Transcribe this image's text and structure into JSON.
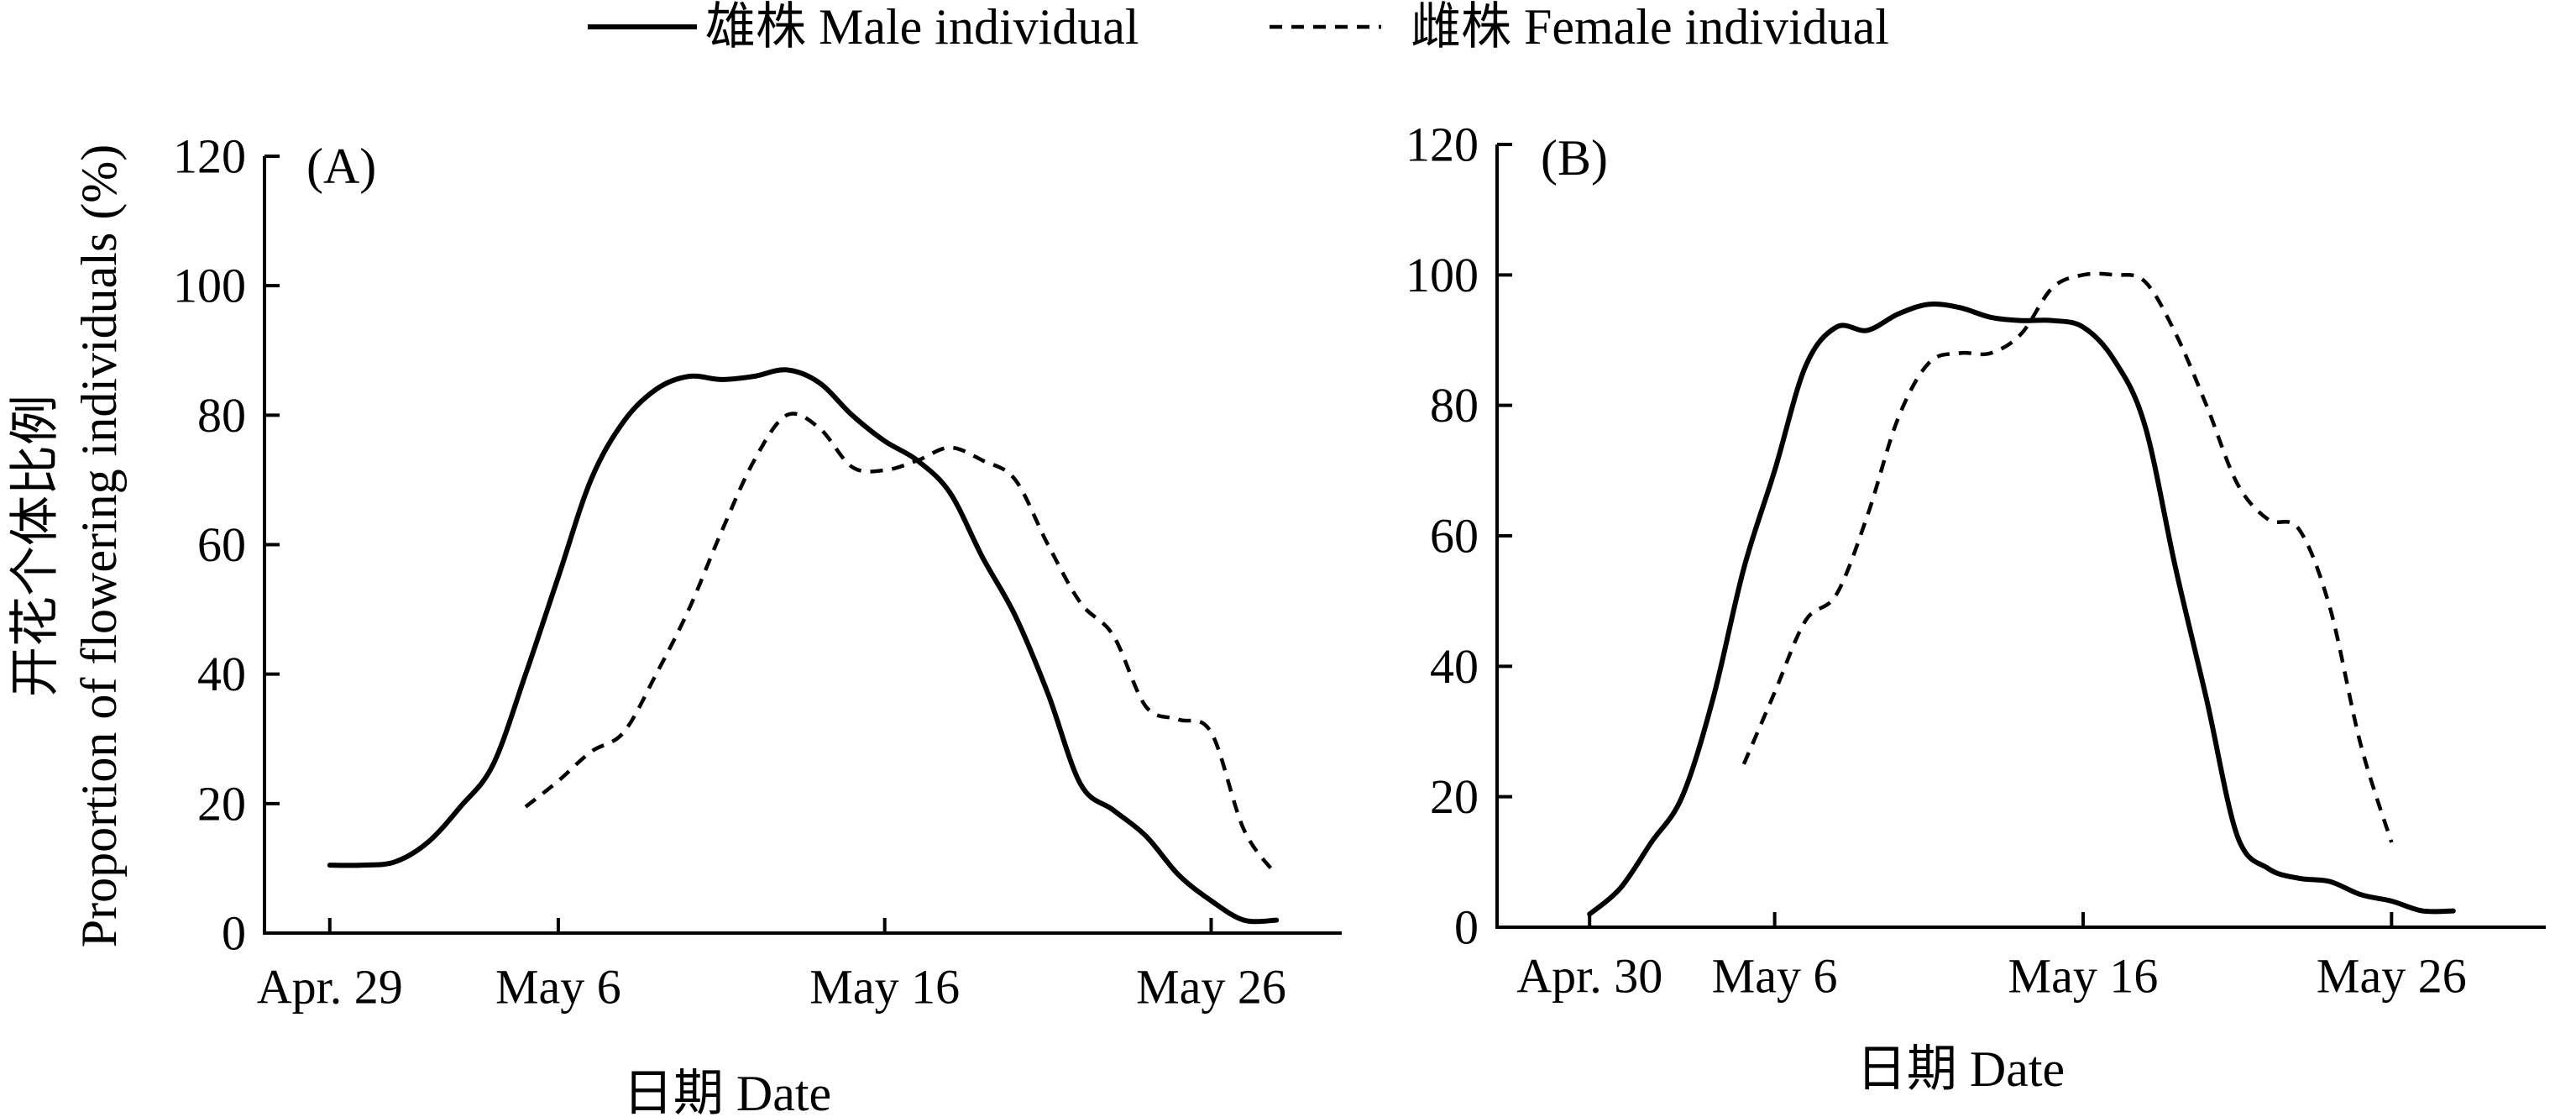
{
  "figure": {
    "legend": [
      {
        "label": "雄株 Male individual",
        "style": "solid"
      },
      {
        "label": "雌株 Female individual",
        "style": "dashed"
      }
    ]
  },
  "chart_data": [
    {
      "type": "line",
      "panel_label": "(A)",
      "title": "",
      "xlabel": "日期 Date",
      "ylabel_cn": "开花个体比例",
      "ylabel_en": "Proportion of flowering individuals (%)",
      "ylim": [
        0,
        120
      ],
      "yticks": [
        0,
        20,
        40,
        60,
        80,
        100,
        120
      ],
      "x_range": [
        "2014-04-27",
        "2014-05-30"
      ],
      "xticks": [
        {
          "label": "Apr. 29",
          "date": "2014-04-29"
        },
        {
          "label": "May 6",
          "date": "2014-05-06"
        },
        {
          "label": "May 16",
          "date": "2014-05-16"
        },
        {
          "label": "May 26",
          "date": "2014-05-26"
        }
      ],
      "series": [
        {
          "name": "雄株 Male individual",
          "style": "solid",
          "points": [
            [
              "2014-04-29",
              10.5
            ],
            [
              "2014-04-30",
              10.5
            ],
            [
              "2014-05-01",
              11
            ],
            [
              "2014-05-02",
              14
            ],
            [
              "2014-05-03",
              19.5
            ],
            [
              "2014-05-04",
              26
            ],
            [
              "2014-05-05",
              40
            ],
            [
              "2014-05-06",
              55
            ],
            [
              "2014-05-07",
              70
            ],
            [
              "2014-05-08",
              79
            ],
            [
              "2014-05-09",
              84
            ],
            [
              "2014-05-10",
              86
            ],
            [
              "2014-05-11",
              85.5
            ],
            [
              "2014-05-12",
              86
            ],
            [
              "2014-05-13",
              87
            ],
            [
              "2014-05-14",
              85
            ],
            [
              "2014-05-15",
              80
            ],
            [
              "2014-05-16",
              76
            ],
            [
              "2014-05-17",
              73
            ],
            [
              "2014-05-18",
              68
            ],
            [
              "2014-05-19",
              58
            ],
            [
              "2014-05-20",
              49
            ],
            [
              "2014-05-21",
              37
            ],
            [
              "2014-05-22",
              23
            ],
            [
              "2014-05-23",
              19
            ],
            [
              "2014-05-24",
              15
            ],
            [
              "2014-05-25",
              9
            ],
            [
              "2014-05-26",
              5
            ],
            [
              "2014-05-27",
              2
            ],
            [
              "2014-05-28",
              2
            ]
          ]
        },
        {
          "name": "雌株 Female individual",
          "style": "dashed",
          "points": [
            [
              "2014-05-05",
              19.5
            ],
            [
              "2014-05-06",
              23.5
            ],
            [
              "2014-05-07",
              28
            ],
            [
              "2014-05-08",
              31
            ],
            [
              "2014-05-09",
              40
            ],
            [
              "2014-05-10",
              50
            ],
            [
              "2014-05-11",
              62
            ],
            [
              "2014-05-12",
              73
            ],
            [
              "2014-05-13",
              80
            ],
            [
              "2014-05-14",
              78
            ],
            [
              "2014-05-15",
              72
            ],
            [
              "2014-05-16",
              71.5
            ],
            [
              "2014-05-17",
              73
            ],
            [
              "2014-05-18",
              75
            ],
            [
              "2014-05-19",
              73
            ],
            [
              "2014-05-20",
              70
            ],
            [
              "2014-05-21",
              60
            ],
            [
              "2014-05-22",
              51
            ],
            [
              "2014-05-23",
              46
            ],
            [
              "2014-05-24",
              35
            ],
            [
              "2014-05-25",
              33
            ],
            [
              "2014-05-26",
              31
            ],
            [
              "2014-05-27",
              16
            ],
            [
              "2014-05-28",
              9
            ]
          ]
        }
      ]
    },
    {
      "type": "line",
      "panel_label": "(B)",
      "title": "",
      "xlabel": "日期 Date",
      "ylim": [
        0,
        120
      ],
      "yticks": [
        0,
        20,
        40,
        60,
        80,
        100,
        120
      ],
      "x_range": [
        "2014-04-27",
        "2014-05-31"
      ],
      "xticks": [
        {
          "label": "Apr. 30",
          "date": "2014-04-30"
        },
        {
          "label": "May 6",
          "date": "2014-05-06"
        },
        {
          "label": "May 16",
          "date": "2014-05-16"
        },
        {
          "label": "May 26",
          "date": "2014-05-26"
        }
      ],
      "series": [
        {
          "name": "雄株 Male individual",
          "style": "solid",
          "points": [
            [
              "2014-04-30",
              2
            ],
            [
              "2014-05-01",
              6
            ],
            [
              "2014-05-02",
              13
            ],
            [
              "2014-05-03",
              20
            ],
            [
              "2014-05-04",
              35
            ],
            [
              "2014-05-05",
              55
            ],
            [
              "2014-05-06",
              70
            ],
            [
              "2014-05-07",
              86
            ],
            [
              "2014-05-08",
              92
            ],
            [
              "2014-05-09",
              91.5
            ],
            [
              "2014-05-10",
              94
            ],
            [
              "2014-05-11",
              95.5
            ],
            [
              "2014-05-12",
              95
            ],
            [
              "2014-05-13",
              93.5
            ],
            [
              "2014-05-14",
              93
            ],
            [
              "2014-05-15",
              93
            ],
            [
              "2014-05-16",
              92
            ],
            [
              "2014-05-17",
              87
            ],
            [
              "2014-05-18",
              77
            ],
            [
              "2014-05-19",
              55
            ],
            [
              "2014-05-20",
              35
            ],
            [
              "2014-05-21",
              14
            ],
            [
              "2014-05-22",
              9
            ],
            [
              "2014-05-23",
              7.5
            ],
            [
              "2014-05-24",
              7
            ],
            [
              "2014-05-25",
              5
            ],
            [
              "2014-05-26",
              4
            ],
            [
              "2014-05-27",
              2.5
            ],
            [
              "2014-05-28",
              2.5
            ]
          ]
        },
        {
          "name": "雌株 Female individual",
          "style": "dashed",
          "points": [
            [
              "2014-05-05",
              25
            ],
            [
              "2014-05-06",
              36
            ],
            [
              "2014-05-07",
              47
            ],
            [
              "2014-05-08",
              51
            ],
            [
              "2014-05-09",
              63
            ],
            [
              "2014-05-10",
              78
            ],
            [
              "2014-05-11",
              86.5
            ],
            [
              "2014-05-12",
              88
            ],
            [
              "2014-05-13",
              88
            ],
            [
              "2014-05-14",
              91
            ],
            [
              "2014-05-15",
              98
            ],
            [
              "2014-05-16",
              100
            ],
            [
              "2014-05-17",
              100
            ],
            [
              "2014-05-18",
              99
            ],
            [
              "2014-05-19",
              91
            ],
            [
              "2014-05-20",
              80
            ],
            [
              "2014-05-21",
              68
            ],
            [
              "2014-05-22",
              62.5
            ],
            [
              "2014-05-23",
              61
            ],
            [
              "2014-05-24",
              49
            ],
            [
              "2014-05-25",
              28
            ],
            [
              "2014-05-26",
              13
            ]
          ]
        }
      ]
    }
  ]
}
